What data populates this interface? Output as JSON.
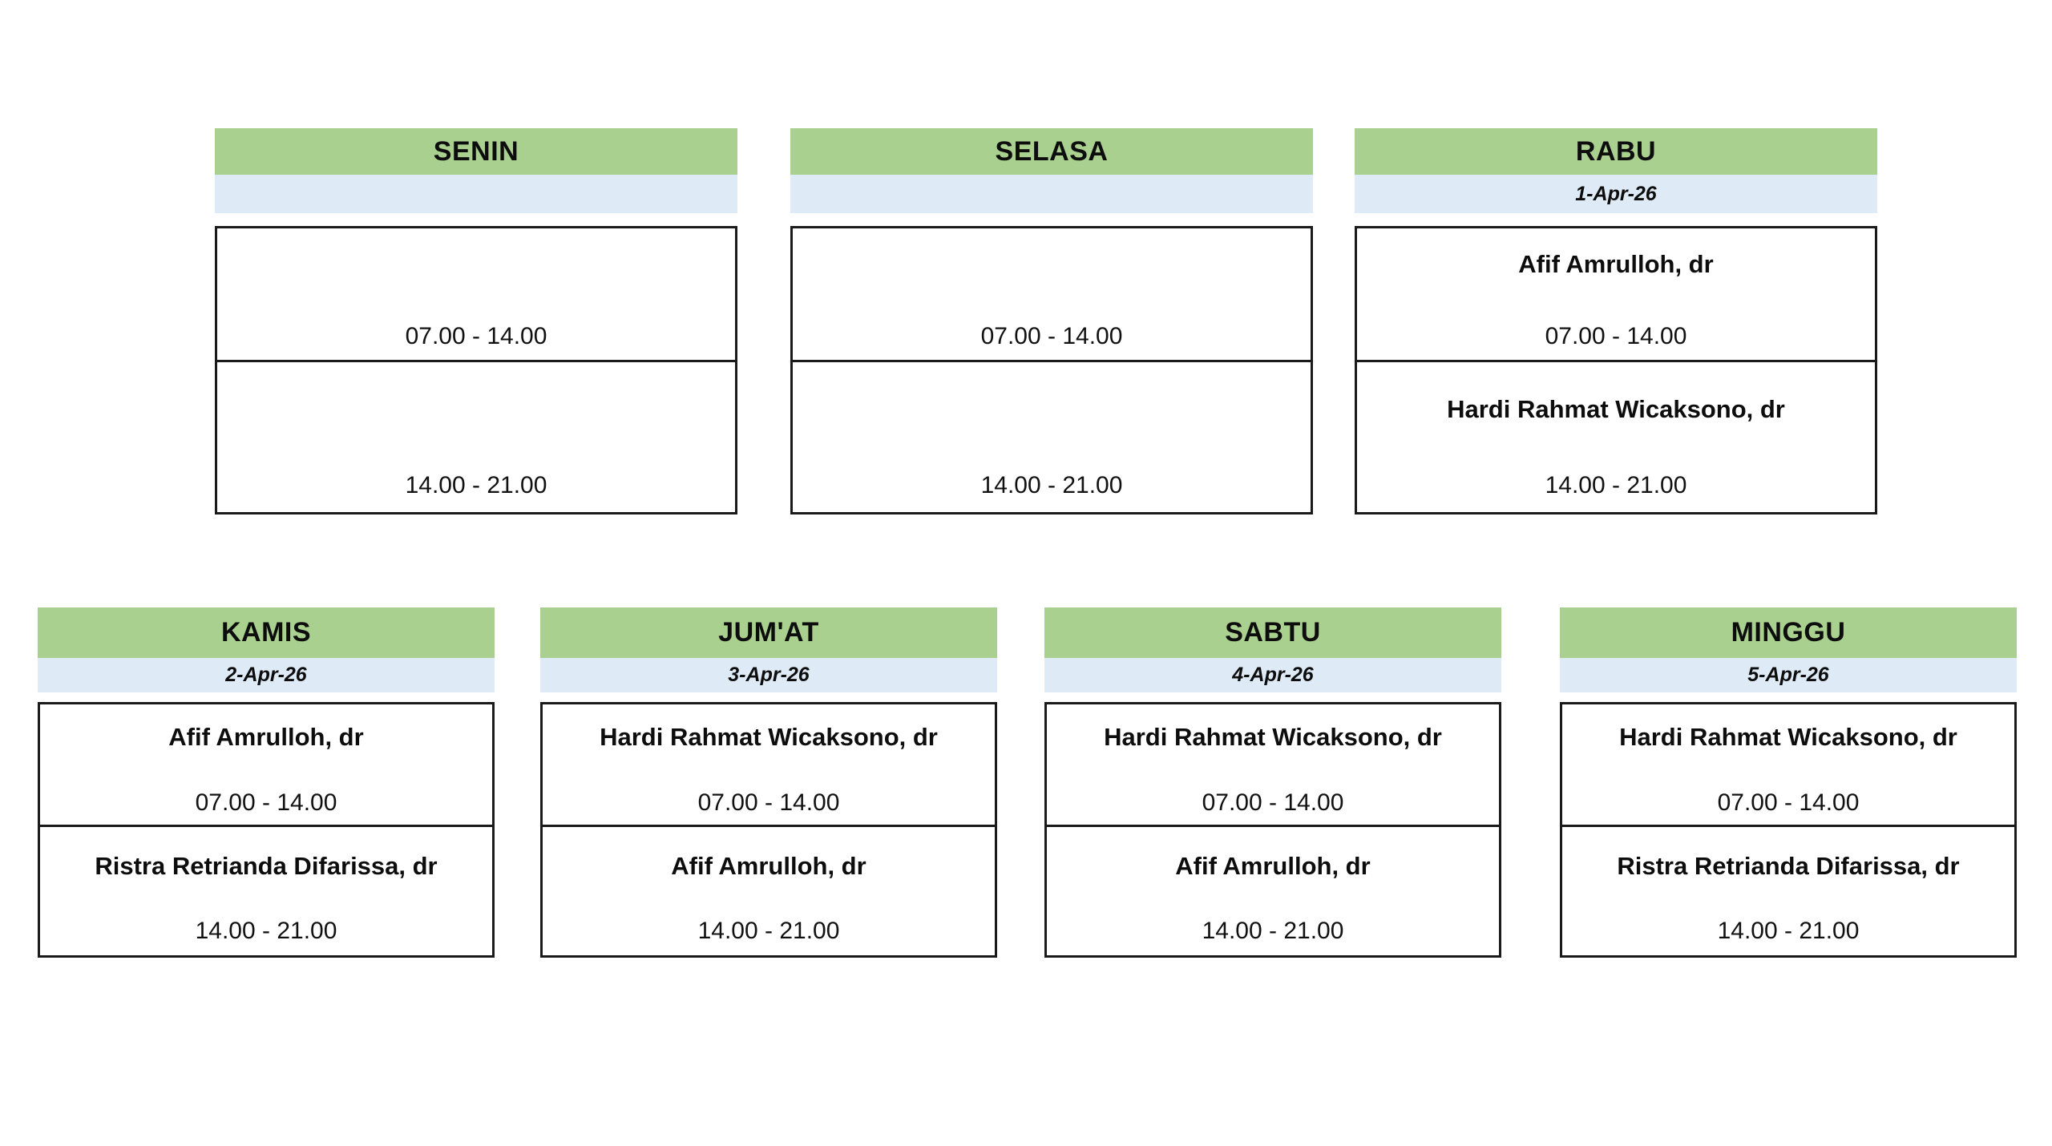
{
  "colors": {
    "header_green": "#a9d08e",
    "date_blue": "#deeaf6",
    "border_black": "#1a1a1a",
    "background": "#ffffff"
  },
  "schedule": {
    "rows": [
      {
        "cards": [
          {
            "day": "SENIN",
            "date": "",
            "shifts": [
              {
                "doctor": "",
                "time": "07.00 - 14.00"
              },
              {
                "doctor": "",
                "time": "14.00 - 21.00"
              }
            ]
          },
          {
            "day": "SELASA",
            "date": "",
            "shifts": [
              {
                "doctor": "",
                "time": "07.00 - 14.00"
              },
              {
                "doctor": "",
                "time": "14.00 - 21.00"
              }
            ]
          },
          {
            "day": "RABU",
            "date": "1-Apr-26",
            "shifts": [
              {
                "doctor": "Afif Amrulloh, dr",
                "time": "07.00 - 14.00"
              },
              {
                "doctor": "Hardi Rahmat Wicaksono, dr",
                "time": "14.00 - 21.00"
              }
            ]
          }
        ]
      },
      {
        "cards": [
          {
            "day": "KAMIS",
            "date": "2-Apr-26",
            "shifts": [
              {
                "doctor": "Afif Amrulloh, dr",
                "time": "07.00 - 14.00"
              },
              {
                "doctor": "Ristra Retrianda Difarissa, dr",
                "time": "14.00 - 21.00"
              }
            ]
          },
          {
            "day": "JUM'AT",
            "date": "3-Apr-26",
            "shifts": [
              {
                "doctor": "Hardi Rahmat Wicaksono, dr",
                "time": "07.00 - 14.00"
              },
              {
                "doctor": "Afif Amrulloh, dr",
                "time": "14.00 - 21.00"
              }
            ]
          },
          {
            "day": "SABTU",
            "date": "4-Apr-26",
            "shifts": [
              {
                "doctor": "Hardi Rahmat Wicaksono, dr",
                "time": "07.00 - 14.00"
              },
              {
                "doctor": "Afif Amrulloh, dr",
                "time": "14.00 - 21.00"
              }
            ]
          },
          {
            "day": "MINGGU",
            "date": "5-Apr-26",
            "shifts": [
              {
                "doctor": "Hardi Rahmat Wicaksono, dr",
                "time": "07.00 - 14.00"
              },
              {
                "doctor": "Ristra Retrianda Difarissa, dr",
                "time": "14.00 - 21.00"
              }
            ]
          }
        ]
      }
    ]
  }
}
